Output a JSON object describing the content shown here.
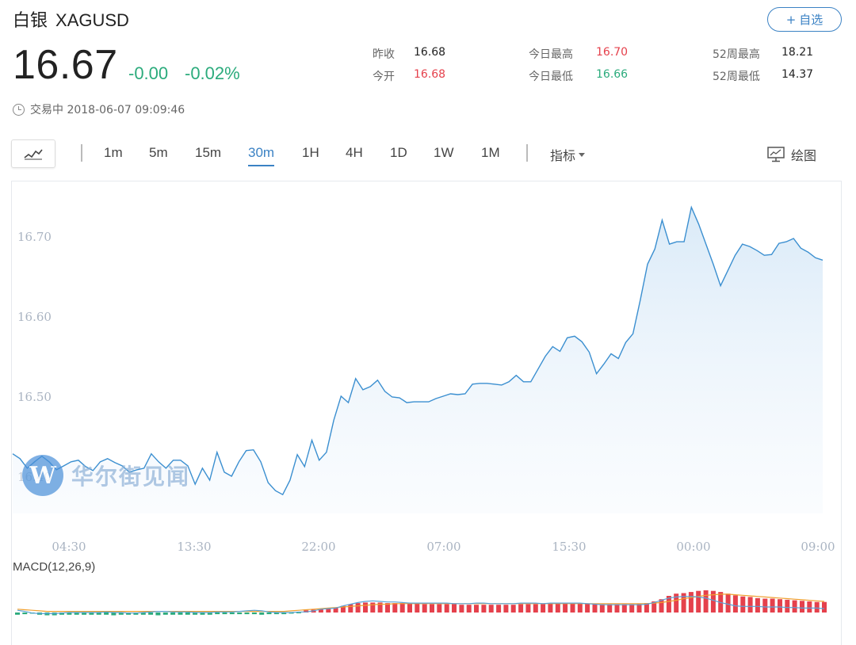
{
  "header": {
    "name_cn": "白银",
    "code": "XAGUSD",
    "fav_label": "自选",
    "price": "16.67",
    "change": "-0.00",
    "change_pct": "-0.02%",
    "status_text": "交易中 2018-06-07 09:09:46"
  },
  "stats": [
    {
      "label": "昨收",
      "value": "16.68",
      "color": "#222222"
    },
    {
      "label": "今开",
      "value": "16.68",
      "color": "#e5414c"
    },
    {
      "label": "今日最高",
      "value": "16.70",
      "color": "#e5414c"
    },
    {
      "label": "今日最低",
      "value": "16.66",
      "color": "#2bab7c"
    },
    {
      "label": "52周最高",
      "value": "18.21",
      "color": "#222222"
    },
    {
      "label": "52周最低",
      "value": "14.37",
      "color": "#222222"
    }
  ],
  "toolbar": {
    "periods": [
      "1m",
      "5m",
      "15m",
      "30m",
      "1H",
      "4H",
      "1D",
      "1W",
      "1M"
    ],
    "active_period": "30m",
    "indicator_label": "指标",
    "draw_label": "绘图"
  },
  "watermark": "华尔街见闻",
  "colors": {
    "line": "#3b8fd0",
    "up": "#e5414c",
    "down": "#2bab7c",
    "accent": "#3b82c4",
    "dif": "#5aa3d8",
    "dea": "#f0a030"
  },
  "chart_data": {
    "type": "line",
    "title": "",
    "xlabel": "",
    "ylabel": "",
    "x_ticks": [
      "04:30",
      "13:30",
      "22:00",
      "07:00",
      "15:30",
      "00:00",
      "09:00"
    ],
    "y_ticks": [
      "16.70",
      "16.60",
      "16.50",
      "16.40"
    ],
    "ylim": [
      16.36,
      16.77
    ],
    "series": [
      {
        "values": [
          16.428,
          16.422,
          16.41,
          16.418,
          16.425,
          16.418,
          16.408,
          16.413,
          16.418,
          16.42,
          16.412,
          16.407,
          16.418,
          16.422,
          16.417,
          16.413,
          16.405,
          16.408,
          16.41,
          16.428,
          16.418,
          16.41,
          16.42,
          16.42,
          16.413,
          16.39,
          16.41,
          16.395,
          16.43,
          16.405,
          16.4,
          16.418,
          16.432,
          16.433,
          16.418,
          16.392,
          16.382,
          16.377,
          16.395,
          16.427,
          16.412,
          16.445,
          16.42,
          16.43,
          16.47,
          16.5,
          16.492,
          16.522,
          16.508,
          16.512,
          16.52,
          16.506,
          16.499,
          16.498,
          16.492,
          16.493,
          16.493,
          16.493,
          16.497,
          16.5,
          16.503,
          16.502,
          16.503,
          16.515,
          16.516,
          16.516,
          16.515,
          16.514,
          16.518,
          16.526,
          16.518,
          16.518,
          16.534,
          16.55,
          16.562,
          16.556,
          16.573,
          16.575,
          16.568,
          16.555,
          16.528,
          16.54,
          16.553,
          16.547,
          16.567,
          16.578,
          16.62,
          16.665,
          16.684,
          16.72,
          16.69,
          16.693,
          16.693,
          16.736,
          16.715,
          16.69,
          16.665,
          16.638,
          16.657,
          16.676,
          16.69,
          16.687,
          16.682,
          16.676,
          16.677,
          16.691,
          16.693,
          16.697,
          16.685,
          16.68,
          16.673,
          16.67
        ]
      }
    ],
    "macd": {
      "label": "MACD(12,26,9)",
      "hist": [
        -0.2,
        -0.15,
        -0.1,
        -0.2,
        -0.25,
        -0.25,
        -0.2,
        -0.2,
        -0.2,
        -0.2,
        -0.2,
        -0.2,
        -0.2,
        -0.25,
        -0.2,
        -0.2,
        -0.2,
        -0.2,
        -0.2,
        -0.25,
        -0.2,
        -0.2,
        -0.2,
        -0.2,
        -0.2,
        -0.2,
        -0.2,
        -0.15,
        -0.15,
        -0.15,
        -0.15,
        -0.15,
        -0.15,
        -0.2,
        -0.15,
        -0.15,
        -0.15,
        -0.1,
        -0.05,
        0.2,
        0.25,
        0.3,
        0.35,
        0.45,
        0.6,
        0.75,
        0.85,
        0.9,
        0.9,
        0.9,
        0.85,
        0.85,
        0.85,
        0.8,
        0.8,
        0.75,
        0.75,
        0.75,
        0.75,
        0.75,
        0.7,
        0.7,
        0.7,
        0.7,
        0.7,
        0.7,
        0.7,
        0.7,
        0.75,
        0.75,
        0.75,
        0.75,
        0.8,
        0.85,
        0.85,
        0.85,
        0.85,
        0.8,
        0.75,
        0.75,
        0.75,
        0.75,
        0.75,
        0.75,
        0.8,
        0.85,
        1.0,
        1.2,
        1.5,
        1.7,
        1.75,
        1.85,
        1.95,
        2.0,
        1.95,
        1.85,
        1.7,
        1.55,
        1.45,
        1.4,
        1.3,
        1.25,
        1.25,
        1.2,
        1.15,
        1.1,
        1.05,
        1.0,
        0.95,
        0.95
      ],
      "dif": [
        0.2,
        0.1,
        -0.05,
        -0.1,
        -0.1,
        -0.1,
        -0.05,
        0.0,
        0.0,
        0.0,
        0.0,
        0.0,
        0.05,
        0.0,
        0.0,
        -0.05,
        -0.05,
        0.0,
        0.05,
        0.1,
        0.1,
        0.05,
        0.05,
        0.05,
        0.0,
        0.0,
        0.0,
        0.05,
        0.05,
        0.05,
        0.1,
        0.15,
        0.2,
        0.15,
        0.05,
        0.0,
        0.0,
        0.0,
        0.05,
        0.05,
        0.15,
        0.3,
        0.35,
        0.4,
        0.6,
        0.75,
        0.9,
        1.0,
        1.05,
        1.0,
        0.95,
        0.95,
        0.9,
        0.85,
        0.85,
        0.85,
        0.85,
        0.85,
        0.85,
        0.8,
        0.8,
        0.8,
        0.85,
        0.85,
        0.8,
        0.8,
        0.8,
        0.8,
        0.85,
        0.85,
        0.85,
        0.8,
        0.85,
        0.85,
        0.85,
        0.85,
        0.85,
        0.8,
        0.75,
        0.7,
        0.7,
        0.7,
        0.7,
        0.7,
        0.7,
        0.75,
        0.9,
        1.1,
        1.3,
        1.4,
        1.45,
        1.45,
        1.4,
        1.3,
        1.1,
        0.9,
        0.75,
        0.6,
        0.55,
        0.55,
        0.55,
        0.5,
        0.5,
        0.5,
        0.45,
        0.45,
        0.4,
        0.4,
        0.4,
        0.35
      ],
      "dea": [
        0.3,
        0.25,
        0.2,
        0.15,
        0.1,
        0.1,
        0.1,
        0.1,
        0.1,
        0.1,
        0.1,
        0.1,
        0.1,
        0.1,
        0.1,
        0.1,
        0.1,
        0.1,
        0.1,
        0.1,
        0.1,
        0.1,
        0.1,
        0.1,
        0.1,
        0.1,
        0.1,
        0.1,
        0.1,
        0.1,
        0.1,
        0.1,
        0.1,
        0.1,
        0.1,
        0.1,
        0.1,
        0.15,
        0.2,
        0.25,
        0.3,
        0.35,
        0.4,
        0.45,
        0.5,
        0.55,
        0.6,
        0.65,
        0.7,
        0.75,
        0.75,
        0.8,
        0.8,
        0.8,
        0.8,
        0.8,
        0.8,
        0.8,
        0.8,
        0.8,
        0.8,
        0.8,
        0.8,
        0.8,
        0.8,
        0.8,
        0.8,
        0.8,
        0.8,
        0.8,
        0.8,
        0.8,
        0.8,
        0.8,
        0.8,
        0.8,
        0.8,
        0.8,
        0.8,
        0.8,
        0.8,
        0.8,
        0.8,
        0.8,
        0.8,
        0.8,
        0.85,
        0.9,
        1.0,
        1.1,
        1.25,
        1.35,
        1.45,
        1.55,
        1.6,
        1.65,
        1.65,
        1.6,
        1.55,
        1.5,
        1.45,
        1.4,
        1.35,
        1.3,
        1.25,
        1.2,
        1.15,
        1.1,
        1.05,
        1.0
      ]
    }
  }
}
